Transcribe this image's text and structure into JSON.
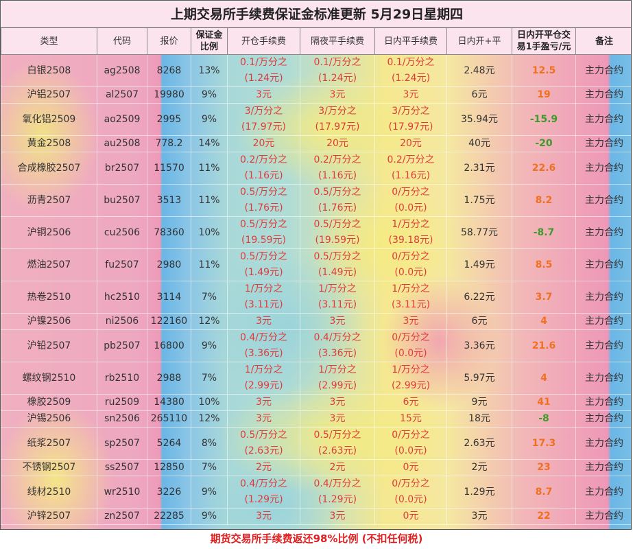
{
  "title": "上期交易所手续费保证金标准更新 5月29日星期四",
  "headers": [
    "类型",
    "代码",
    "报价",
    "保证金比例",
    "开仓手续费",
    "隔夜平手续费",
    "日内平手续费",
    "日内开+平",
    "日内开平仓交易1手盈亏/元",
    "备注"
  ],
  "colors": {
    "fee": "#e03a3a",
    "profit_positive": "#f07020",
    "profit_negative": "#3f9a2a",
    "header_bg": "#fce4ee"
  },
  "rows": [
    {
      "type": "白银2508",
      "code": "ag2508",
      "price": "8268",
      "margin": "13%",
      "open": [
        "0.1/万分之",
        "(1.24元)"
      ],
      "overnight": [
        "0.1/万分之",
        "(1.24元)"
      ],
      "intraday": [
        "0.1/万分之",
        "(1.24元)"
      ],
      "total": "2.48元",
      "pl": "12.5",
      "note": "主力合约"
    },
    {
      "type": "沪铝2507",
      "code": "al2507",
      "price": "19980",
      "margin": "9%",
      "open": [
        "3元"
      ],
      "overnight": [
        "3元"
      ],
      "intraday": [
        "3元"
      ],
      "total": "6元",
      "pl": "19",
      "note": "主力合约"
    },
    {
      "type": "氧化铝2509",
      "code": "ao2509",
      "price": "2995",
      "margin": "9%",
      "open": [
        "3/万分之",
        "(17.97元)"
      ],
      "overnight": [
        "3/万分之",
        "(17.97元)"
      ],
      "intraday": [
        "3/万分之",
        "(17.97元)"
      ],
      "total": "35.94元",
      "pl": "-15.9",
      "note": "主力合约"
    },
    {
      "type": "黄金2508",
      "code": "au2508",
      "price": "778.2",
      "margin": "14%",
      "open": [
        "20元"
      ],
      "overnight": [
        "20元"
      ],
      "intraday": [
        "20元"
      ],
      "total": "40元",
      "pl": "-20",
      "note": "主力合约"
    },
    {
      "type": "合成橡胶2507",
      "code": "br2507",
      "price": "11570",
      "margin": "11%",
      "open": [
        "0.2/万分之",
        "(1.16元)"
      ],
      "overnight": [
        "0.2/万分之",
        "(1.16元)"
      ],
      "intraday": [
        "0.2/万分之",
        "(1.16元)"
      ],
      "total": "2.31元",
      "pl": "22.6",
      "note": "主力合约"
    },
    {
      "type": "沥青2507",
      "code": "bu2507",
      "price": "3513",
      "margin": "11%",
      "open": [
        "0.5/万分之",
        "(1.76元)"
      ],
      "overnight": [
        "0.5/万分之",
        "(1.76元)"
      ],
      "intraday": [
        "0/万分之",
        "(0.0元)"
      ],
      "total": "1.75元",
      "pl": "8.2",
      "note": "主力合约"
    },
    {
      "type": "沪铜2506",
      "code": "cu2506",
      "price": "78360",
      "margin": "10%",
      "open": [
        "0.5/万分之",
        "(19.59元)"
      ],
      "overnight": [
        "0.5/万分之",
        "(19.59元)"
      ],
      "intraday": [
        "1/万分之",
        "(39.18元)"
      ],
      "total": "58.77元",
      "pl": "-8.7",
      "note": "主力合约"
    },
    {
      "type": "燃油2507",
      "code": "fu2507",
      "price": "2980",
      "margin": "11%",
      "open": [
        "0.5/万分之",
        "(1.49元)"
      ],
      "overnight": [
        "0.5/万分之",
        "(1.49元)"
      ],
      "intraday": [
        "0/万分之",
        "(0.0元)"
      ],
      "total": "1.49元",
      "pl": "8.5",
      "note": "主力合约"
    },
    {
      "type": "热卷2510",
      "code": "hc2510",
      "price": "3114",
      "margin": "7%",
      "open": [
        "1/万分之",
        "(3.11元)"
      ],
      "overnight": [
        "1/万分之",
        "(3.11元)"
      ],
      "intraday": [
        "1/万分之",
        "(3.11元)"
      ],
      "total": "6.22元",
      "pl": "3.7",
      "note": "主力合约"
    },
    {
      "type": "沪镍2506",
      "code": "ni2506",
      "price": "122160",
      "margin": "12%",
      "open": [
        "3元"
      ],
      "overnight": [
        "3元"
      ],
      "intraday": [
        "3元"
      ],
      "total": "6元",
      "pl": "4",
      "note": "主力合约"
    },
    {
      "type": "沪铅2507",
      "code": "pb2507",
      "price": "16800",
      "margin": "9%",
      "open": [
        "0.4/万分之",
        "(3.36元)"
      ],
      "overnight": [
        "0.4/万分之",
        "(3.36元)"
      ],
      "intraday": [
        "0/万分之",
        "(0.0元)"
      ],
      "total": "3.36元",
      "pl": "21.6",
      "note": "主力合约"
    },
    {
      "type": "螺纹钢2510",
      "code": "rb2510",
      "price": "2988",
      "margin": "7%",
      "open": [
        "1/万分之",
        "(2.99元)"
      ],
      "overnight": [
        "1/万分之",
        "(2.99元)"
      ],
      "intraday": [
        "1/万分之",
        "(2.99元)"
      ],
      "total": "5.97元",
      "pl": "4",
      "note": "主力合约"
    },
    {
      "type": "橡胶2509",
      "code": "ru2509",
      "price": "14380",
      "margin": "10%",
      "open": [
        "3元"
      ],
      "overnight": [
        "3元"
      ],
      "intraday": [
        "6元"
      ],
      "total": "9元",
      "pl": "41",
      "note": "主力合约"
    },
    {
      "type": "沪锡2506",
      "code": "sn2506",
      "price": "265110",
      "margin": "12%",
      "open": [
        "3元"
      ],
      "overnight": [
        "3元"
      ],
      "intraday": [
        "15元"
      ],
      "total": "18元",
      "pl": "-8",
      "note": "主力合约"
    },
    {
      "type": "纸浆2507",
      "code": "sp2507",
      "price": "5264",
      "margin": "8%",
      "open": [
        "0.5/万分之",
        "(2.63元)"
      ],
      "overnight": [
        "0.5/万分之",
        "(2.63元)"
      ],
      "intraday": [
        "0/万分之",
        "(0.0元)"
      ],
      "total": "2.63元",
      "pl": "17.3",
      "note": "主力合约"
    },
    {
      "type": "不锈钢2507",
      "code": "ss2507",
      "price": "12850",
      "margin": "7%",
      "open": [
        "2元"
      ],
      "overnight": [
        "2元"
      ],
      "intraday": [
        "0元"
      ],
      "total": "2元",
      "pl": "23",
      "note": "主力合约"
    },
    {
      "type": "线材2510",
      "code": "wr2510",
      "price": "3226",
      "margin": "9%",
      "open": [
        "0.4/万分之",
        "(1.29元)"
      ],
      "overnight": [
        "0.4/万分之",
        "(1.29元)"
      ],
      "intraday": [
        "0/万分之",
        "(0.0元)"
      ],
      "total": "1.29元",
      "pl": "8.7",
      "note": "主力合约"
    },
    {
      "type": "沪锌2507",
      "code": "zn2507",
      "price": "22285",
      "margin": "9%",
      "open": [
        "3元"
      ],
      "overnight": [
        "3元"
      ],
      "intraday": [
        "0元"
      ],
      "total": "3元",
      "pl": "22",
      "note": "主力合约"
    }
  ],
  "footer": "期货交易所手续费返还98%比例 (不扣任何税)"
}
